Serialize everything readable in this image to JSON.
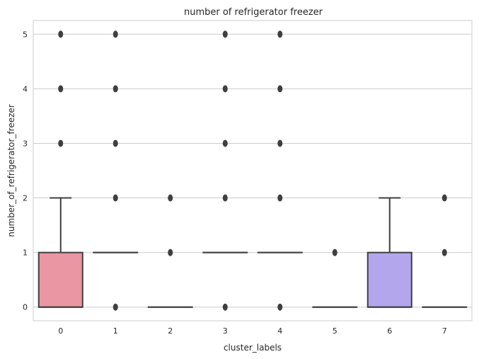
{
  "chart_data": {
    "type": "box",
    "title": "number of refrigerator freezer",
    "xlabel": "cluster_labels",
    "ylabel": "number_of_refrigerator_freezer",
    "categories": [
      "0",
      "1",
      "2",
      "3",
      "4",
      "5",
      "6",
      "7"
    ],
    "ylim": [
      -0.25,
      5.25
    ],
    "yticks": [
      0,
      1,
      2,
      3,
      4,
      5
    ],
    "grid": true,
    "boxes": [
      {
        "category": "0",
        "q1": 0,
        "median": 0,
        "q3": 1,
        "whisker_low": 0,
        "whisker_high": 2,
        "fliers": [
          3,
          4,
          5
        ],
        "color": "#ea96a3"
      },
      {
        "category": "1",
        "q1": 1,
        "median": 1,
        "q3": 1,
        "whisker_low": 1,
        "whisker_high": 1,
        "fliers": [
          0,
          2,
          3,
          4,
          5
        ],
        "color": "#d8a767"
      },
      {
        "category": "2",
        "q1": 0,
        "median": 0,
        "q3": 0,
        "whisker_low": 0,
        "whisker_high": 0,
        "fliers": [
          1,
          2
        ],
        "color": "#a9b764"
      },
      {
        "category": "3",
        "q1": 1,
        "median": 1,
        "q3": 1,
        "whisker_low": 1,
        "whisker_high": 1,
        "fliers": [
          0,
          2,
          3,
          4,
          5
        ],
        "color": "#64bf8e"
      },
      {
        "category": "4",
        "q1": 1,
        "median": 1,
        "q3": 1,
        "whisker_low": 1,
        "whisker_high": 1,
        "fliers": [
          0,
          2,
          3,
          4,
          5
        ],
        "color": "#67bebf"
      },
      {
        "category": "5",
        "q1": 0,
        "median": 0,
        "q3": 0,
        "whisker_low": 0,
        "whisker_high": 0,
        "fliers": [
          1
        ],
        "color": "#6eb4e7"
      },
      {
        "category": "6",
        "q1": 0,
        "median": 0,
        "q3": 1,
        "whisker_low": 0,
        "whisker_high": 2,
        "fliers": [],
        "color": "#b4a6ed"
      },
      {
        "category": "7",
        "q1": 0,
        "median": 0,
        "q3": 0,
        "whisker_low": 0,
        "whisker_high": 0,
        "fliers": [
          1,
          2
        ],
        "color": "#eb94d4"
      }
    ]
  }
}
